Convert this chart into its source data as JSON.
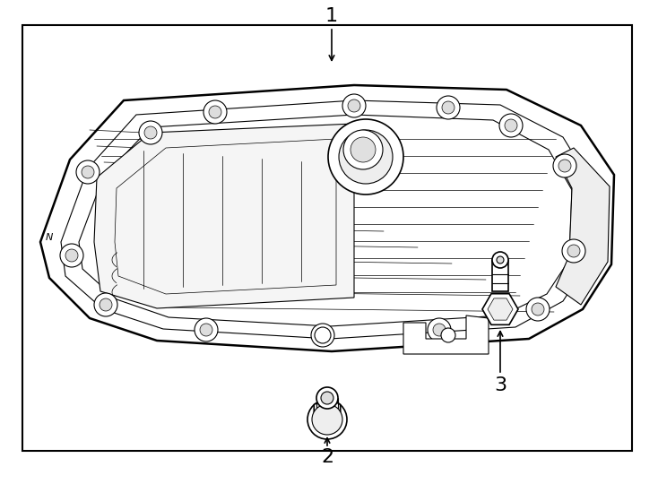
{
  "bg_color": "#ffffff",
  "line_color": "#000000",
  "lw_thick": 1.8,
  "lw_med": 1.2,
  "lw_thin": 0.8,
  "lw_vt": 0.5,
  "fig_width": 7.34,
  "fig_height": 5.4,
  "dpi": 100,
  "label_1": "1",
  "label_2": "2",
  "label_3": "3"
}
